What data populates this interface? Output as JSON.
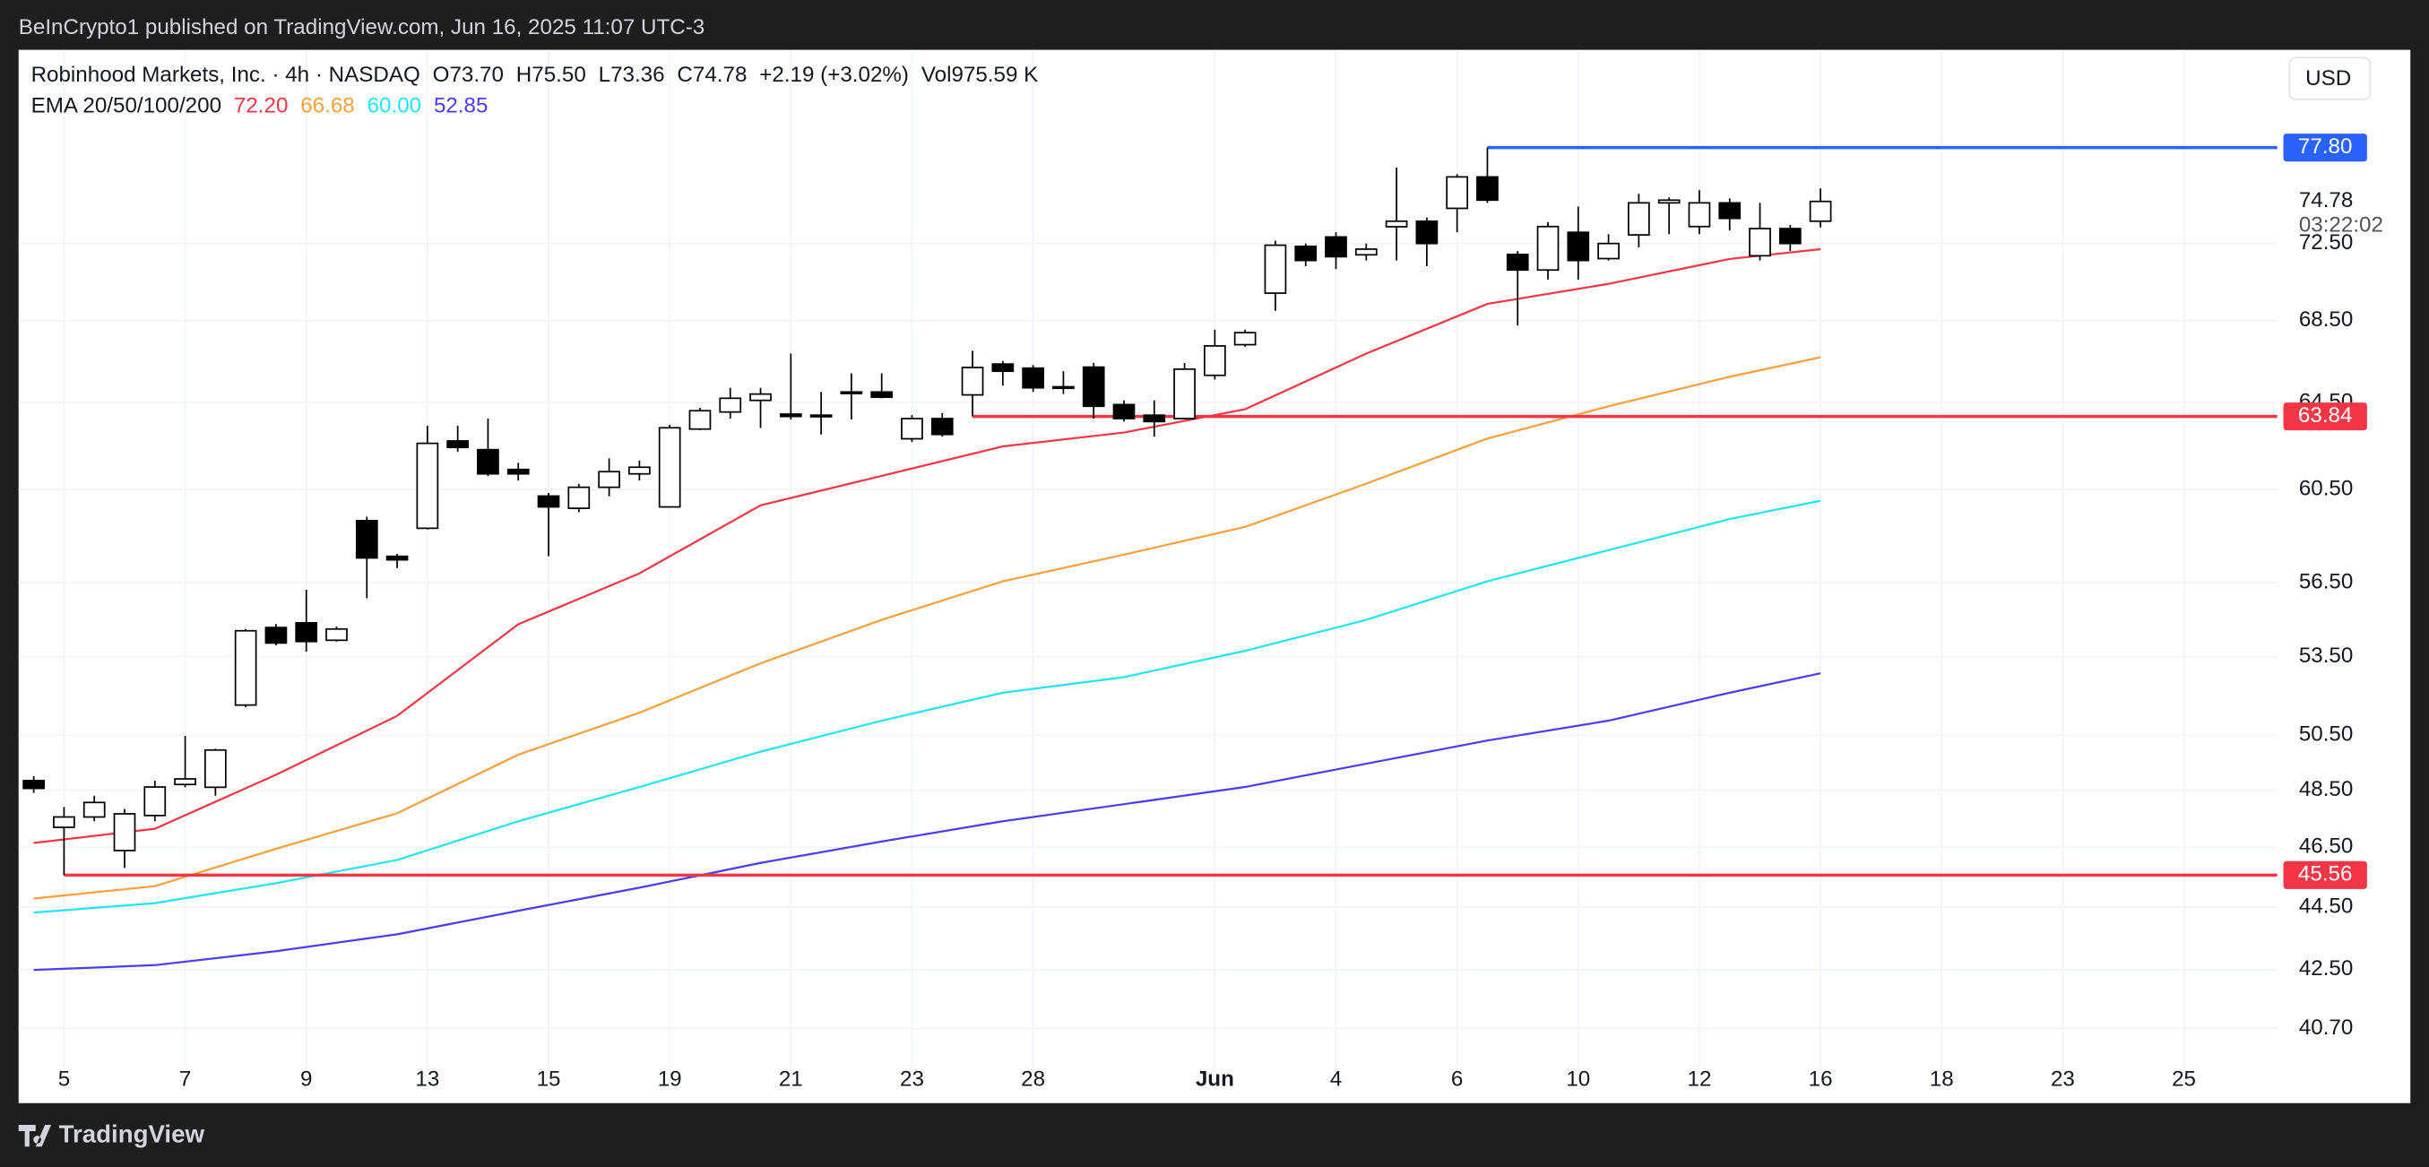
{
  "header": {
    "published": "BeInCrypto1 published on TradingView.com, Jun 16, 2025 11:07 UTC-3"
  },
  "legend": {
    "symbol": "Robinhood Markets, Inc. · 4h · NASDAQ",
    "items": [
      {
        "prefix": "O",
        "value": "73.70"
      },
      {
        "prefix": "H",
        "value": "75.50"
      },
      {
        "prefix": "L",
        "value": "73.36"
      },
      {
        "prefix": "C",
        "value": "74.78"
      }
    ],
    "change": "+2.19 (+3.02%)",
    "volume_prefix": "Vol",
    "volume": "975.59 K",
    "indicator": "EMA 20/50/100/200"
  },
  "currency": "USD",
  "footer": {
    "brand": "TradingView"
  },
  "chart_data": {
    "type": "candlestick",
    "log_scale": true,
    "grid": true,
    "xlim": [
      -0.5,
      74.08
    ],
    "ylim": [
      39.5,
      83.6
    ],
    "xticks": [
      {
        "value": 1,
        "label": "5"
      },
      {
        "value": 5,
        "label": "7"
      },
      {
        "value": 9,
        "label": "9"
      },
      {
        "value": 13,
        "label": "13"
      },
      {
        "value": 17,
        "label": "15"
      },
      {
        "value": 21,
        "label": "19"
      },
      {
        "value": 25,
        "label": "21"
      },
      {
        "value": 29,
        "label": "23"
      },
      {
        "value": 33,
        "label": "28"
      },
      {
        "value": 39,
        "label": "Jun"
      },
      {
        "value": 43,
        "label": "4"
      },
      {
        "value": 47,
        "label": "6"
      },
      {
        "value": 51,
        "label": "10"
      },
      {
        "value": 55,
        "label": "12"
      },
      {
        "value": 59,
        "label": "16"
      },
      {
        "value": 63,
        "label": "18"
      },
      {
        "value": 67,
        "label": "23"
      },
      {
        "value": 71,
        "label": "25"
      }
    ],
    "yticks": [
      {
        "value": 40.7,
        "label": "40.70"
      },
      {
        "value": 42.5,
        "label": "42.50"
      },
      {
        "value": 44.5,
        "label": "44.50"
      },
      {
        "value": 46.5,
        "label": "46.50"
      },
      {
        "value": 48.5,
        "label": "48.50"
      },
      {
        "value": 50.5,
        "label": "50.50"
      },
      {
        "value": 53.5,
        "label": "53.50"
      },
      {
        "value": 56.5,
        "label": "56.50"
      },
      {
        "value": 60.5,
        "label": "60.50"
      },
      {
        "value": 64.5,
        "label": "64.50"
      },
      {
        "value": 68.5,
        "label": "68.50"
      },
      {
        "value": 72.5,
        "label": "72.50"
      }
    ],
    "up_color": "#ffffff",
    "down_color": "#000000",
    "open": [
      48.84,
      47.19,
      47.55,
      46.39,
      47.6,
      48.7,
      48.6,
      51.63,
      54.66,
      54.85,
      54.15,
      59.13,
      57.6,
      58.8,
      62.7,
      62.3,
      61.4,
      60.21,
      59.67,
      60.6,
      61.2,
      59.73,
      63.25,
      64.05,
      64.6,
      63.95,
      63.9,
      65.0,
      65.0,
      62.8,
      63.74,
      64.86,
      66.35,
      66.15,
      65.25,
      66.2,
      64.4,
      63.9,
      63.74,
      65.8,
      67.3,
      69.9,
      72.35,
      72.85,
      71.9,
      73.4,
      73.7,
      74.4,
      76.14,
      71.92,
      71.1,
      73.1,
      71.7,
      72.96,
      74.7,
      73.41,
      74.7,
      71.85,
      73.3,
      73.7
    ],
    "high": [
      49.0,
      47.9,
      48.3,
      47.83,
      48.84,
      50.47,
      50.0,
      54.6,
      54.8,
      56.2,
      54.7,
      59.3,
      57.7,
      63.4,
      63.4,
      63.74,
      61.7,
      60.35,
      60.75,
      61.9,
      61.8,
      63.45,
      64.25,
      65.2,
      65.2,
      66.86,
      65.0,
      65.9,
      65.9,
      63.9,
      64.0,
      67.0,
      66.5,
      66.3,
      66.0,
      66.4,
      64.6,
      64.6,
      66.4,
      68.05,
      68.05,
      72.65,
      72.5,
      73.1,
      72.5,
      76.66,
      73.9,
      76.3,
      77.8,
      72.1,
      73.65,
      74.5,
      73.0,
      75.2,
      75.0,
      75.4,
      74.95,
      74.7,
      73.5,
      75.5
    ],
    "low": [
      48.4,
      45.56,
      47.4,
      45.8,
      47.4,
      48.6,
      48.3,
      51.55,
      53.95,
      53.7,
      54.1,
      55.85,
      57.1,
      58.75,
      62.2,
      61.1,
      60.9,
      57.6,
      59.5,
      60.2,
      60.9,
      59.7,
      63.2,
      63.74,
      63.3,
      63.7,
      63.0,
      63.7,
      64.7,
      62.65,
      62.9,
      63.84,
      65.3,
      65.0,
      64.9,
      63.74,
      63.6,
      62.9,
      63.7,
      65.6,
      67.2,
      69.0,
      71.3,
      71.15,
      71.6,
      71.6,
      71.3,
      73.1,
      74.7,
      68.25,
      70.6,
      70.6,
      71.6,
      72.3,
      73.0,
      73.0,
      73.2,
      71.6,
      72.1,
      73.36
    ],
    "close": [
      48.56,
      47.55,
      48.06,
      47.66,
      48.61,
      48.9,
      49.95,
      54.53,
      54.04,
      54.1,
      54.6,
      57.53,
      57.45,
      62.59,
      62.4,
      61.2,
      61.2,
      59.73,
      60.6,
      61.3,
      61.5,
      63.31,
      64.11,
      64.7,
      64.9,
      63.84,
      63.85,
      64.95,
      64.75,
      63.74,
      63.0,
      66.18,
      66.0,
      65.2,
      65.2,
      64.32,
      63.74,
      63.6,
      66.1,
      67.24,
      67.9,
      72.41,
      71.6,
      71.8,
      72.2,
      73.7,
      72.5,
      76.14,
      74.85,
      71.1,
      73.41,
      71.6,
      72.5,
      74.7,
      74.85,
      74.7,
      73.85,
      73.3,
      72.5,
      74.78
    ],
    "ema_x": [
      0,
      4,
      8,
      12,
      16,
      20,
      24,
      28,
      32,
      36,
      40,
      44,
      48,
      52,
      56,
      59
    ],
    "series": [
      {
        "color": "#f23645",
        "legend_value": "72.20",
        "values": [
          46.65,
          47.14,
          49.05,
          51.22,
          54.79,
          56.88,
          59.8,
          61.11,
          62.45,
          63.09,
          64.18,
          66.86,
          69.35,
          70.38,
          71.68,
          72.2
        ]
      },
      {
        "color": "#ff9f3a",
        "legend_value": "66.68",
        "values": [
          44.78,
          45.19,
          46.45,
          47.68,
          49.78,
          51.34,
          53.24,
          54.97,
          56.55,
          57.67,
          58.86,
          60.76,
          62.81,
          64.32,
          65.73,
          66.68
        ]
      },
      {
        "color": "#22e4f2",
        "legend_value": "60.00",
        "values": [
          44.32,
          44.63,
          45.29,
          46.07,
          47.4,
          48.61,
          49.89,
          51.04,
          52.1,
          52.7,
          53.73,
          54.97,
          56.55,
          57.86,
          59.2,
          60.0
        ]
      },
      {
        "color": "#4b3cf0",
        "legend_value": "52.85",
        "values": [
          42.49,
          42.64,
          43.08,
          43.62,
          44.38,
          45.14,
          45.97,
          46.7,
          47.4,
          48.0,
          48.61,
          49.45,
          50.3,
          51.04,
          52.1,
          52.85
        ]
      }
    ],
    "levels": [
      {
        "value": 77.8,
        "label": "77.80",
        "color": "#2962ff",
        "from": 48
      },
      {
        "value": 63.84,
        "label": "63.84",
        "color": "#f23645",
        "from": 31
      },
      {
        "value": 45.56,
        "label": "45.56",
        "color": "#f23645",
        "from": 1
      }
    ],
    "current_price": {
      "value": 74.78,
      "label": "74.78",
      "countdown": "03:22:02"
    }
  }
}
